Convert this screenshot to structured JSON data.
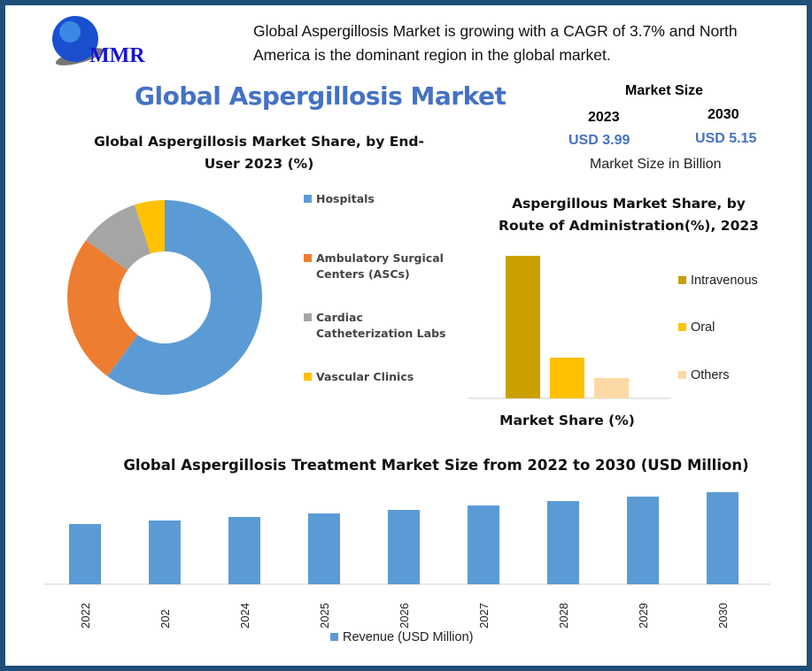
{
  "logo": {
    "text": "MMR"
  },
  "headline": "Global Aspergillosis Market is growing with a CAGR of 3.7% and North America is the dominant region in the global market.",
  "main_title": "Global Aspergillosis Market",
  "market_size": {
    "title": "Market Size",
    "year1": "2023",
    "value1": "USD 3.99",
    "year2": "2030",
    "value2": "USD 5.15",
    "note": "Market Size in Billion"
  },
  "chart_data": [
    {
      "type": "pie",
      "title": "Global Aspergillosis Market Share, by End-User 2023 (%)",
      "donut": true,
      "legend": "right",
      "categories": [
        "Hospitals",
        "Ambulatory Surgical Centers (ASCs)",
        "Cardiac Catheterization Labs",
        "Vascular Clinics"
      ],
      "values": [
        60,
        25,
        10,
        5
      ],
      "colors": [
        "#5b9bd5",
        "#ed7d31",
        "#a5a5a5",
        "#ffc000"
      ]
    },
    {
      "type": "bar",
      "title": "Aspergillous Market Share, by Route of Administration(%), 2023",
      "xlabel": "Market Share (%)",
      "legend": "right",
      "categories": [
        "Intravenous",
        "Oral",
        "Others"
      ],
      "values": [
        70,
        20,
        10
      ],
      "colors": [
        "#c9a000",
        "#ffc000",
        "#fcd9a4"
      ]
    },
    {
      "type": "bar",
      "title": "Global Aspergillosis Treatment Market Size from 2022 to 2030 (USD Million)",
      "legend": "bottom",
      "categories": [
        "2022",
        "202",
        "2024",
        "2025",
        "2026",
        "2027",
        "2028",
        "2029",
        "2030"
      ],
      "series": [
        {
          "name": "Revenue (USD Million)",
          "values": [
            68,
            72,
            76,
            80,
            84,
            89,
            94,
            99,
            104
          ]
        }
      ],
      "color": "#5b9bd5"
    }
  ]
}
